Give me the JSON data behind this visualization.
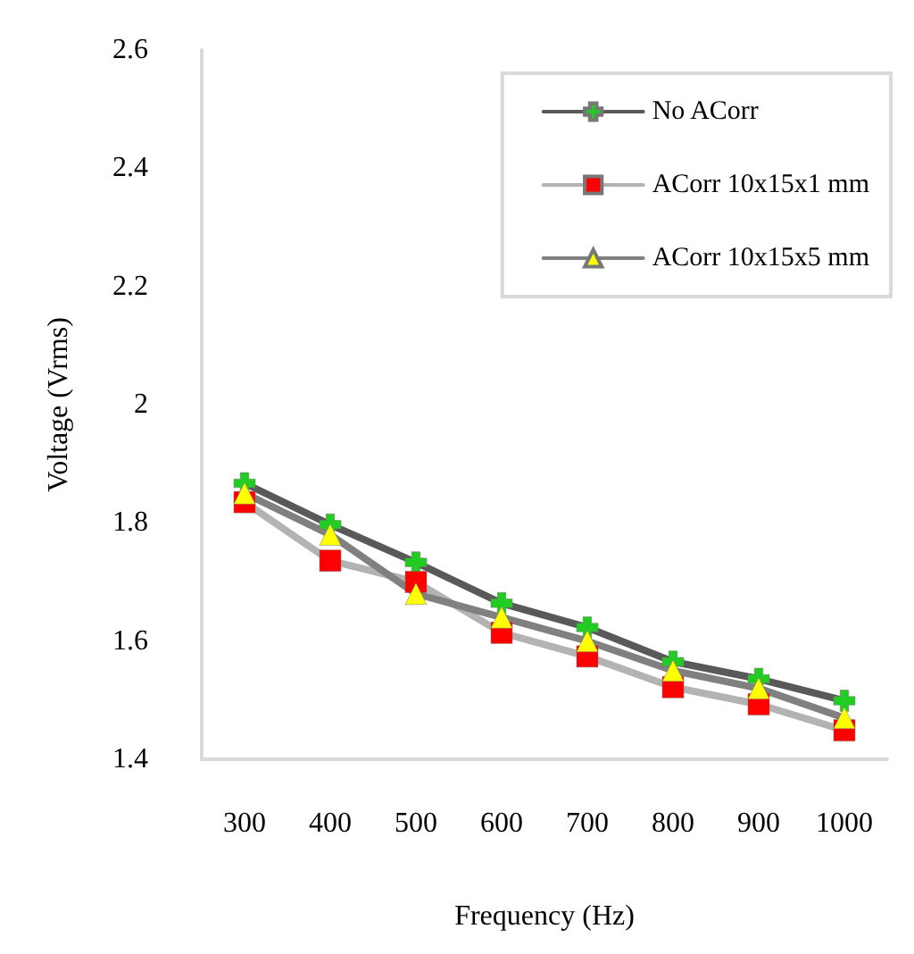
{
  "chart_data": {
    "type": "line",
    "xlabel": "Frequency (Hz)",
    "ylabel": "Voltage (Vrms)",
    "categories": [
      "300",
      "400",
      "500",
      "600",
      "700",
      "800",
      "900",
      "1000"
    ],
    "series": [
      {
        "name": "No ACorr",
        "color": "#595959",
        "marker": "cross",
        "colors": [
          "#22cc22",
          "#22cc22",
          "#22cc22",
          "#22cc22",
          "#22cc22",
          "#22cc22",
          "#22cc22",
          "#22cc22"
        ],
        "values": [
          1.867,
          1.797,
          1.733,
          1.664,
          1.623,
          1.565,
          1.536,
          1.499
        ]
      },
      {
        "name": "ACorr 10x15x1 mm",
        "color": "#b3b3b3",
        "marker": "square",
        "colors": [
          "#ff0000",
          "#ff0000",
          "#ff0000",
          "#ff0000",
          "#ff0000",
          "#ff0000",
          "#ff0000",
          "#ff0000"
        ],
        "values": [
          1.835,
          1.736,
          1.7,
          1.614,
          1.574,
          1.522,
          1.493,
          1.449
        ]
      },
      {
        "name": "ACorr 10x15x5 mm",
        "color": "#808080",
        "marker": "triangle",
        "colors": [
          "#ffff00",
          "#ffff00",
          "#ffff00",
          "#ffff00",
          "#ffff00",
          "#ffff00",
          "#ffff00",
          "#ffff00"
        ],
        "values": [
          1.85,
          1.78,
          1.68,
          1.64,
          1.6,
          1.55,
          1.52,
          1.47
        ]
      }
    ],
    "ylim": [
      1.4,
      2.6
    ],
    "yticks": [
      1.4,
      1.6,
      1.8,
      2,
      2.2,
      2.4,
      2.6
    ],
    "grid": false,
    "legend": "top right",
    "line_style": "solid"
  }
}
